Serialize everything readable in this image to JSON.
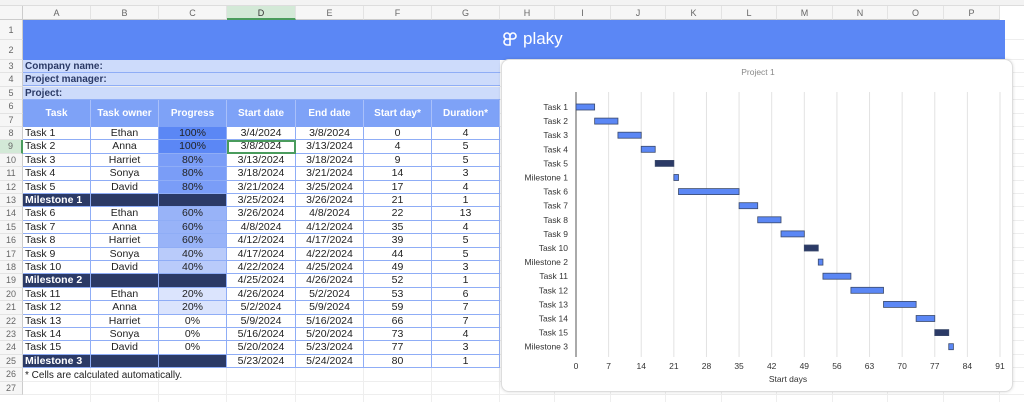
{
  "sheet": {
    "columns": [
      "A",
      "B",
      "C",
      "D",
      "E",
      "F",
      "G",
      "H",
      "I",
      "J",
      "K",
      "L",
      "M",
      "N",
      "O",
      "P"
    ],
    "selected_column": "D",
    "selected_row": 9,
    "rows": [
      1,
      2,
      3,
      4,
      5,
      6,
      7,
      8,
      9,
      10,
      11,
      12,
      13,
      14,
      15,
      16,
      17,
      18,
      19,
      20,
      21,
      22,
      23,
      24,
      25,
      26,
      27
    ]
  },
  "banner": {
    "brand": "plaky",
    "logo_icon": "plaky-logo-icon",
    "color": "#5b87f5"
  },
  "info": {
    "company": "Company name:",
    "manager": "Project manager:",
    "project": "Project:"
  },
  "table": {
    "headers": [
      "Task",
      "Task owner",
      "Progress",
      "Start date",
      "End date",
      "Start day*",
      "Duration*"
    ],
    "rows": [
      {
        "task": "Task 1",
        "owner": "Ethan",
        "progress": "100%",
        "start": "3/4/2024",
        "end": "3/8/2024",
        "start_day": "0",
        "duration": "4"
      },
      {
        "task": "Task 2",
        "owner": "Anna",
        "progress": "100%",
        "start": "3/8/2024",
        "end": "3/13/2024",
        "start_day": "4",
        "duration": "5"
      },
      {
        "task": "Task 3",
        "owner": "Harriet",
        "progress": "80%",
        "start": "3/13/2024",
        "end": "3/18/2024",
        "start_day": "9",
        "duration": "5"
      },
      {
        "task": "Task 4",
        "owner": "Sonya",
        "progress": "80%",
        "start": "3/18/2024",
        "end": "3/21/2024",
        "start_day": "14",
        "duration": "3"
      },
      {
        "task": "Task 5",
        "owner": "David",
        "progress": "80%",
        "start": "3/21/2024",
        "end": "3/25/2024",
        "start_day": "17",
        "duration": "4"
      },
      {
        "task": "Milestone 1",
        "owner": "",
        "progress": "",
        "start": "3/25/2024",
        "end": "3/26/2024",
        "start_day": "21",
        "duration": "1",
        "milestone": true
      },
      {
        "task": "Task 6",
        "owner": "Ethan",
        "progress": "60%",
        "start": "3/26/2024",
        "end": "4/8/2024",
        "start_day": "22",
        "duration": "13"
      },
      {
        "task": "Task 7",
        "owner": "Anna",
        "progress": "60%",
        "start": "4/8/2024",
        "end": "4/12/2024",
        "start_day": "35",
        "duration": "4"
      },
      {
        "task": "Task 8",
        "owner": "Harriet",
        "progress": "60%",
        "start": "4/12/2024",
        "end": "4/17/2024",
        "start_day": "39",
        "duration": "5"
      },
      {
        "task": "Task 9",
        "owner": "Sonya",
        "progress": "40%",
        "start": "4/17/2024",
        "end": "4/22/2024",
        "start_day": "44",
        "duration": "5"
      },
      {
        "task": "Task 10",
        "owner": "David",
        "progress": "40%",
        "start": "4/22/2024",
        "end": "4/25/2024",
        "start_day": "49",
        "duration": "3"
      },
      {
        "task": "Milestone 2",
        "owner": "",
        "progress": "",
        "start": "4/25/2024",
        "end": "4/26/2024",
        "start_day": "52",
        "duration": "1",
        "milestone": true
      },
      {
        "task": "Task 11",
        "owner": "Ethan",
        "progress": "20%",
        "start": "4/26/2024",
        "end": "5/2/2024",
        "start_day": "53",
        "duration": "6"
      },
      {
        "task": "Task 12",
        "owner": "Anna",
        "progress": "20%",
        "start": "5/2/2024",
        "end": "5/9/2024",
        "start_day": "59",
        "duration": "7"
      },
      {
        "task": "Task 13",
        "owner": "Harriet",
        "progress": "0%",
        "start": "5/9/2024",
        "end": "5/16/2024",
        "start_day": "66",
        "duration": "7"
      },
      {
        "task": "Task 14",
        "owner": "Sonya",
        "progress": "0%",
        "start": "5/16/2024",
        "end": "5/20/2024",
        "start_day": "73",
        "duration": "4"
      },
      {
        "task": "Task 15",
        "owner": "David",
        "progress": "0%",
        "start": "5/20/2024",
        "end": "5/23/2024",
        "start_day": "77",
        "duration": "3"
      },
      {
        "task": "Milestone 3",
        "owner": "",
        "progress": "",
        "start": "5/23/2024",
        "end": "5/24/2024",
        "start_day": "80",
        "duration": "1",
        "milestone": true
      }
    ],
    "progress_colors": {
      "100%": "#5b87f5",
      "80%": "#7a9df7",
      "60%": "#98b3f8",
      "40%": "#b9cbfa",
      "20%": "#dbe4fd",
      "0%": "#ffffff"
    },
    "milestone_color": "#2b3a66"
  },
  "note": "* Cells are calculated automatically.",
  "chart_data": {
    "type": "bar",
    "title": "Project 1",
    "xlabel": "Start days",
    "ylabel": "",
    "xlim": [
      0,
      91
    ],
    "xticks": [
      0,
      7,
      14,
      21,
      28,
      35,
      42,
      49,
      56,
      63,
      70,
      77,
      84,
      91
    ],
    "grid": true,
    "categories": [
      "Task 1",
      "Task 2",
      "Task 3",
      "Task 4",
      "Task 5",
      "Milestone 1",
      "Task 6",
      "Task 7",
      "Task 8",
      "Task 9",
      "Task 10",
      "Milestone 2",
      "Task 11",
      "Task 12",
      "Task 13",
      "Task 14",
      "Task 15",
      "Milestone 3"
    ],
    "start": [
      0,
      4,
      9,
      14,
      17,
      21,
      22,
      35,
      39,
      44,
      49,
      52,
      53,
      59,
      66,
      73,
      77,
      80
    ],
    "duration": [
      4,
      5,
      5,
      3,
      4,
      1,
      13,
      4,
      5,
      5,
      3,
      1,
      6,
      7,
      7,
      4,
      3,
      1
    ],
    "bar_color": "#5b87f5",
    "dark_bar_color": "#2b3a66",
    "dark_bars": [
      "Task 5",
      "Task 10",
      "Task 15"
    ]
  }
}
